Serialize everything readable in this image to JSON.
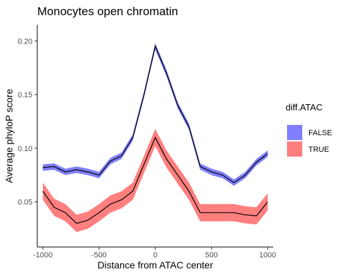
{
  "chart_data": {
    "type": "line",
    "title": "Monocytes open chromatin",
    "xlabel": "Distance from ATAC center",
    "ylabel": "Average phyloP score",
    "xlim": [
      -1050,
      1050
    ],
    "ylim": [
      0.008,
      0.215
    ],
    "x_ticks": [
      -1000,
      -500,
      0,
      500,
      1000
    ],
    "x_tick_labels": [
      "-1000",
      "-500",
      "0",
      "500",
      "1000"
    ],
    "y_ticks": [
      0.05,
      0.1,
      0.15,
      0.2
    ],
    "y_tick_labels": [
      "0.05",
      "0.10",
      "0.15",
      "0.20"
    ],
    "grid": false,
    "legend": {
      "title": "diff.ATAC",
      "placement": "right"
    },
    "line_color": "#000000",
    "series": [
      {
        "name": "FALSE",
        "fill_color": "#7f7fff",
        "x": [
          -1000,
          -900,
          -800,
          -700,
          -600,
          -500,
          -400,
          -300,
          -200,
          -100,
          0,
          100,
          200,
          300,
          400,
          500,
          600,
          700,
          800,
          900,
          1000
        ],
        "values": [
          0.082,
          0.083,
          0.078,
          0.08,
          0.078,
          0.075,
          0.088,
          0.093,
          0.11,
          0.15,
          0.195,
          0.17,
          0.14,
          0.12,
          0.083,
          0.078,
          0.075,
          0.068,
          0.075,
          0.087,
          0.095
        ],
        "band_halfwidth": [
          0.003,
          0.003,
          0.003,
          0.003,
          0.003,
          0.003,
          0.003,
          0.003,
          0.003,
          0.003,
          0.003,
          0.003,
          0.003,
          0.003,
          0.003,
          0.003,
          0.003,
          0.003,
          0.003,
          0.003,
          0.003
        ]
      },
      {
        "name": "TRUE",
        "fill_color": "#ff7f7f",
        "x": [
          -1000,
          -900,
          -800,
          -700,
          -600,
          -500,
          -400,
          -300,
          -200,
          -100,
          0,
          100,
          200,
          300,
          400,
          500,
          600,
          700,
          800,
          900,
          1000
        ],
        "values": [
          0.06,
          0.045,
          0.04,
          0.03,
          0.033,
          0.04,
          0.048,
          0.052,
          0.06,
          0.085,
          0.11,
          0.09,
          0.075,
          0.06,
          0.04,
          0.04,
          0.04,
          0.04,
          0.038,
          0.037,
          0.05
        ],
        "band_halfwidth": [
          0.008,
          0.008,
          0.008,
          0.008,
          0.008,
          0.008,
          0.008,
          0.008,
          0.008,
          0.008,
          0.008,
          0.008,
          0.008,
          0.008,
          0.008,
          0.008,
          0.008,
          0.008,
          0.008,
          0.008,
          0.008
        ]
      }
    ]
  }
}
